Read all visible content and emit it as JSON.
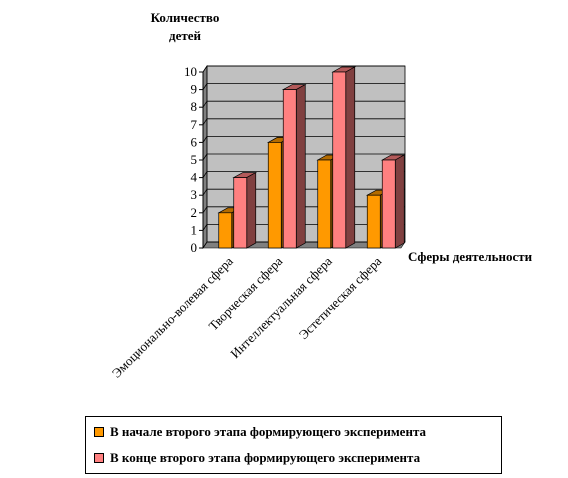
{
  "chart_data": {
    "type": "bar",
    "ylabel": "Количество детей",
    "xlabel": "Сферы деятельности",
    "ylim": [
      0,
      10
    ],
    "yticks": [
      "0",
      "1",
      "2",
      "3",
      "4",
      "5",
      "6",
      "7",
      "8",
      "9",
      "10"
    ],
    "categories": [
      "Эмоционально-волевая сфера",
      "Творческая сфера",
      "Интеллектуальная сфера",
      "Эстетическая сфера"
    ],
    "series": [
      {
        "name": "В начале второго этапа формирующего эксперимента",
        "values": [
          2,
          6,
          5,
          3
        ],
        "color": "#FF9900"
      },
      {
        "name": "В конце второго этапа формирующего эксперимента",
        "values": [
          4,
          9,
          10,
          5
        ],
        "color": "#FF8080"
      }
    ],
    "grid": true,
    "legend_position": "bottom"
  }
}
